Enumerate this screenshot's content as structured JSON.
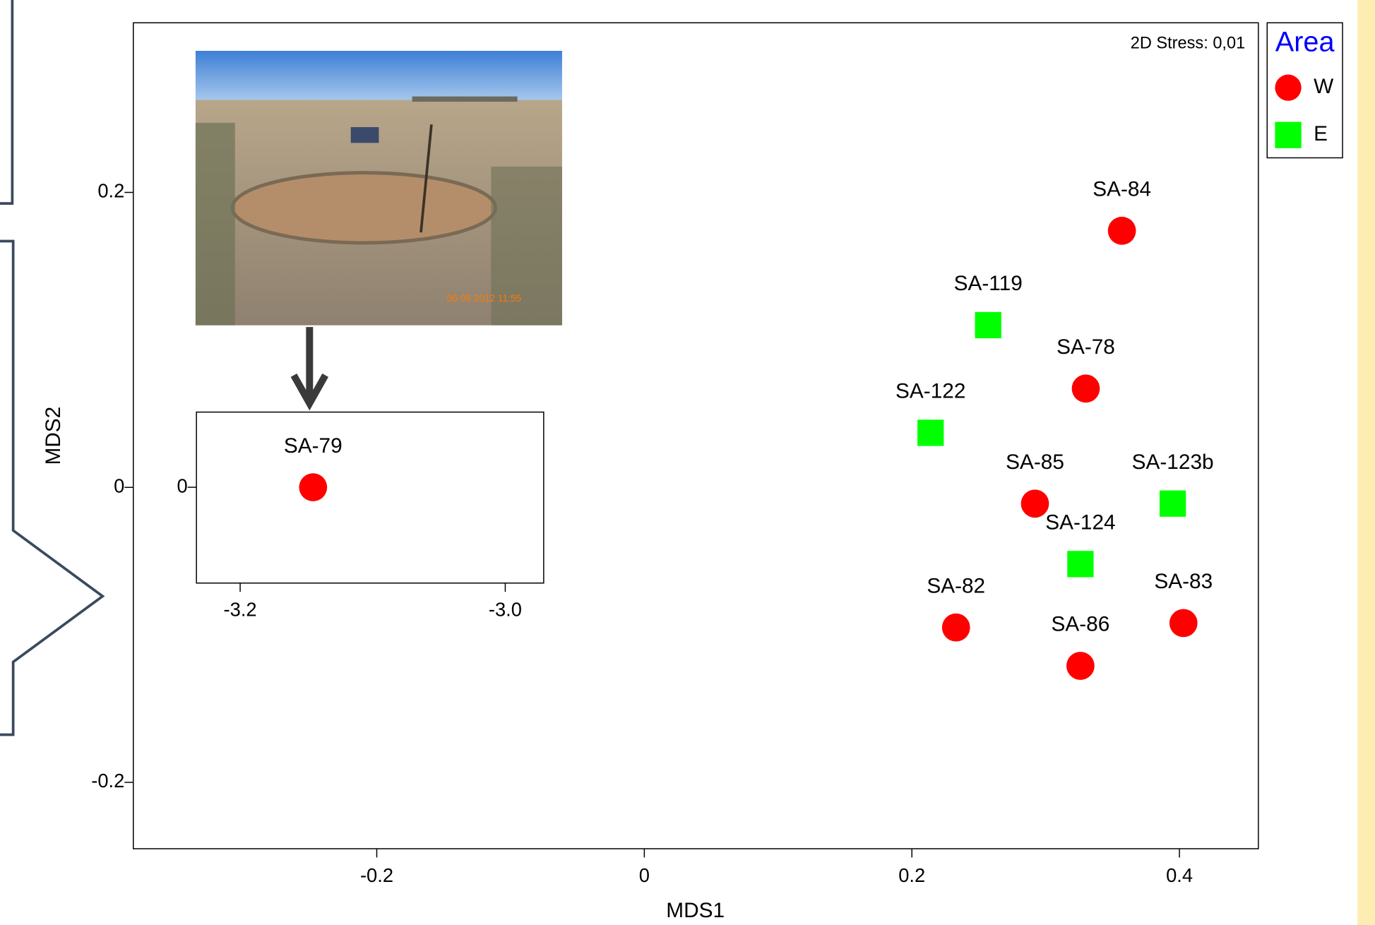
{
  "chart_data": [
    {
      "type": "scatter",
      "x_label": "MDS1",
      "y_label": "MDS2",
      "annotation": "2D Stress: 0,01",
      "legend_title": "Area",
      "xlim": [
        -0.382,
        0.459
      ],
      "ylim": [
        -0.245,
        0.315
      ],
      "xticks": [
        -0.2,
        0,
        0.2,
        0.4
      ],
      "yticks": [
        -0.2,
        0,
        0.2
      ],
      "series": [
        {
          "name": "W",
          "color": "#ff0000",
          "marker": "circle",
          "labels": [
            "SA-84",
            "SA-78",
            "SA-85",
            "SA-82",
            "SA-83",
            "SA-86"
          ],
          "x": [
            0.357,
            0.33,
            0.292,
            0.233,
            0.403,
            0.326
          ],
          "y": [
            0.174,
            0.067,
            -0.011,
            -0.095,
            -0.092,
            -0.121
          ]
        },
        {
          "name": "E",
          "color": "#00ff00",
          "marker": "square",
          "labels": [
            "SA-119",
            "SA-122",
            "SA-123b",
            "SA-124"
          ],
          "x": [
            0.257,
            0.214,
            0.395,
            0.326
          ],
          "y": [
            0.11,
            0.037,
            -0.011,
            -0.052
          ]
        }
      ]
    },
    {
      "type": "scatter",
      "photo_timestamp": "06 09 2012 11:55",
      "xlim": [
        -3.233,
        -2.971
      ],
      "ylim": [
        -0.065,
        0.051
      ],
      "xticks": [
        -3.2,
        {
          "value": -3,
          "label": "-3.0"
        }
      ],
      "yticks": [
        0
      ],
      "series": [
        {
          "color": "#ff0000",
          "marker": "circle",
          "labels": [
            "SA-79"
          ],
          "x": [
            -3.145
          ],
          "y": [
            0
          ]
        }
      ]
    }
  ]
}
